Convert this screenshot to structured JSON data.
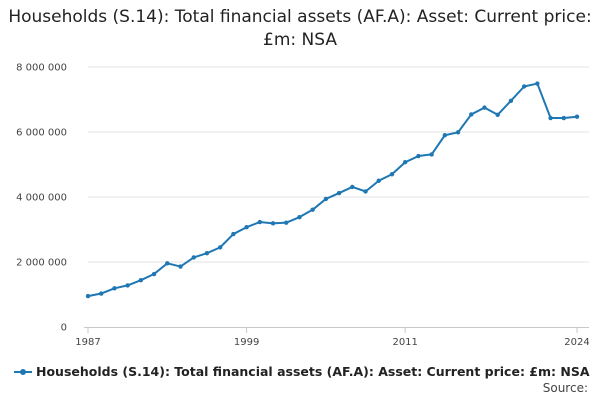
{
  "chart_data": {
    "type": "line",
    "title": "Households (S.14): Total financial assets (AF.A): Asset: Current price: £m: NSA",
    "xlabel": "",
    "ylabel": "",
    "x": [
      1987,
      1988,
      1989,
      1990,
      1991,
      1992,
      1993,
      1994,
      1995,
      1996,
      1997,
      1998,
      1999,
      2000,
      2001,
      2002,
      2003,
      2004,
      2005,
      2006,
      2007,
      2008,
      2009,
      2010,
      2011,
      2012,
      2013,
      2014,
      2015,
      2016,
      2017,
      2018,
      2019,
      2020,
      2021,
      2022,
      2023,
      2024
    ],
    "series": [
      {
        "name": "Households (S.14): Total financial assets (AF.A): Asset: Current price: £m: NSA",
        "values": [
          950000,
          1030000,
          1190000,
          1280000,
          1440000,
          1630000,
          1960000,
          1860000,
          2140000,
          2270000,
          2450000,
          2860000,
          3070000,
          3230000,
          3190000,
          3210000,
          3380000,
          3610000,
          3940000,
          4120000,
          4310000,
          4170000,
          4500000,
          4700000,
          5070000,
          5260000,
          5310000,
          5900000,
          5990000,
          6540000,
          6750000,
          6530000,
          6960000,
          7400000,
          7490000,
          6430000,
          6430000,
          6470000
        ]
      }
    ],
    "xticks": [
      "1987",
      "1999",
      "2011",
      "2024"
    ],
    "xtick_values": [
      1987,
      1999,
      2011,
      2024
    ],
    "yticks": [
      "0",
      "2 000 000",
      "4 000 000",
      "6 000 000",
      "8 000 000"
    ],
    "ytick_values": [
      0,
      2000000,
      4000000,
      6000000,
      8000000
    ],
    "xlim": [
      1987,
      2024
    ],
    "ylim": [
      0,
      8000000
    ],
    "grid": "horizontal",
    "legend_position": "bottom-left",
    "line_color": "#1f77b4"
  },
  "legend": {
    "label": "Households (S.14): Total financial assets (AF.A): Asset: Current price: £m: NSA"
  },
  "footer": {
    "source_label": "Source:"
  }
}
